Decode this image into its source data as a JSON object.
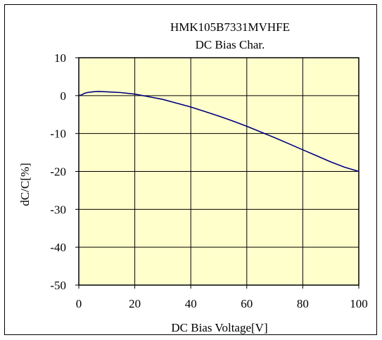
{
  "chart_data": {
    "type": "line",
    "title": [
      "HMK105B7331MVHFE",
      "DC Bias Char."
    ],
    "xlabel": "DC Bias Voltage[V]",
    "ylabel": "dC/C[%]",
    "xlim": [
      0,
      100
    ],
    "ylim": [
      -50,
      10
    ],
    "xticks": [
      "0",
      "20",
      "40",
      "60",
      "80",
      "100"
    ],
    "yticks": [
      "10",
      "0",
      "-10",
      "-20",
      "-30",
      "-40",
      "-50"
    ],
    "grid": true,
    "legend": "none",
    "colors": {
      "plot_bg": "#ffffcc",
      "line": "#000080",
      "grid": "#000000"
    },
    "series": [
      {
        "x": [
          0,
          1,
          2,
          3,
          5,
          7,
          10,
          15,
          20,
          25,
          30,
          35,
          40,
          45,
          50,
          55,
          60,
          65,
          70,
          75,
          80,
          85,
          90,
          95,
          100
        ],
        "y": [
          0,
          0.2,
          0.6,
          0.8,
          1.0,
          1.1,
          1.0,
          0.8,
          0.4,
          -0.3,
          -1.0,
          -2.0,
          -3.0,
          -4.2,
          -5.4,
          -6.7,
          -8.1,
          -9.6,
          -11.1,
          -12.7,
          -14.3,
          -15.9,
          -17.5,
          -18.9,
          -20.0
        ]
      }
    ]
  }
}
